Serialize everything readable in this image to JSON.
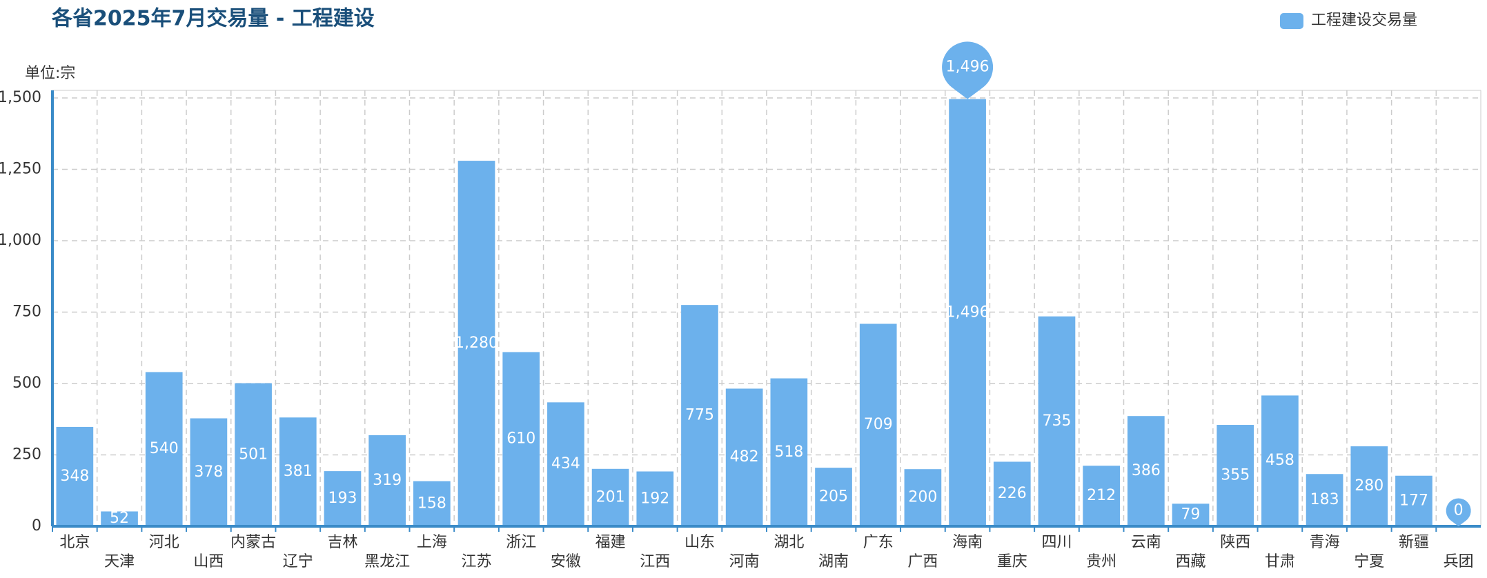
{
  "chart_data": {
    "type": "bar",
    "title": "各省2025年7月交易量 - 工程建设",
    "y_axis_label": "单位:宗",
    "categories": [
      "北京",
      "天津",
      "河北",
      "山西",
      "内蒙古",
      "辽宁",
      "吉林",
      "黑龙江",
      "上海",
      "江苏",
      "浙江",
      "安徽",
      "福建",
      "江西",
      "山东",
      "河南",
      "湖北",
      "湖南",
      "广东",
      "广西",
      "海南",
      "重庆",
      "四川",
      "贵州",
      "云南",
      "西藏",
      "陕西",
      "甘肃",
      "青海",
      "宁夏",
      "新疆",
      "兵团"
    ],
    "series": [
      {
        "name": "工程建设交易量",
        "color": "#6cb1ec",
        "values": [
          348,
          52,
          540,
          378,
          501,
          381,
          193,
          319,
          158,
          1280,
          610,
          434,
          201,
          192,
          775,
          482,
          518,
          205,
          709,
          200,
          1496,
          226,
          735,
          212,
          386,
          79,
          355,
          458,
          183,
          280,
          177,
          0
        ],
        "value_labels": [
          "348",
          "52",
          "540",
          "378",
          "501",
          "381",
          "193",
          "319",
          "158",
          "1,280",
          "610",
          "434",
          "201",
          "192",
          "775",
          "482",
          "518",
          "205",
          "709",
          "200",
          "1,496",
          "226",
          "735",
          "212",
          "386",
          "79",
          "355",
          "458",
          "183",
          "280",
          "177",
          "0"
        ]
      }
    ],
    "mark_points": [
      "max",
      "min"
    ],
    "ylim": [
      0,
      1500
    ],
    "yticks": [
      0,
      {
        "value": 250,
        "label": "250"
      },
      500,
      750,
      {
        "value": 1000,
        "label": "1,000"
      },
      {
        "value": 1250,
        "label": "1,250"
      },
      {
        "value": 1500,
        "label": "1,500"
      }
    ],
    "grid": true,
    "legend": "top-right"
  }
}
